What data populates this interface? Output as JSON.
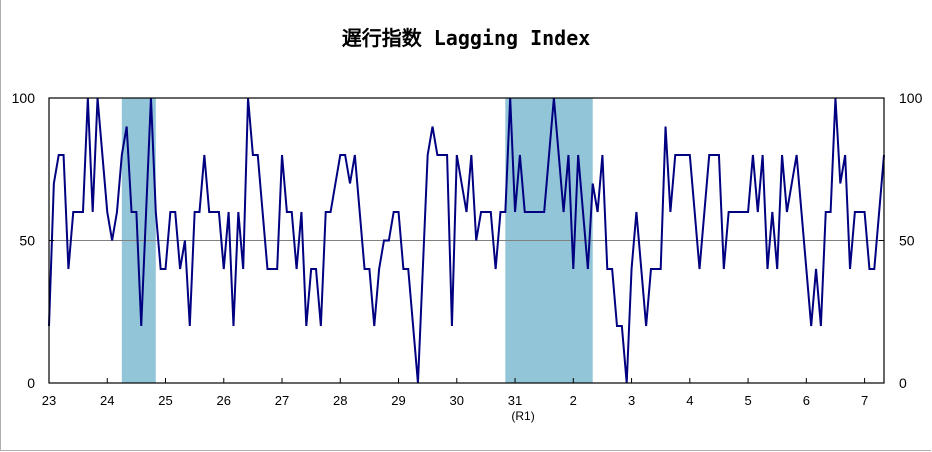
{
  "chart_data": {
    "type": "line",
    "title": "遅行指数 Lagging Index",
    "xlabel": "",
    "ylabel": "",
    "ylim": [
      0,
      100
    ],
    "y_ticks": [
      0,
      50,
      100
    ],
    "grid": "horizontal line at 50",
    "legend": "none",
    "line_color": "#000080",
    "shade_color": "#92C5D8",
    "x_tick_labels": [
      "23",
      "24",
      "25",
      "26",
      "27",
      "28",
      "29",
      "30",
      "31",
      "2",
      "3",
      "4",
      "5",
      "6",
      "7"
    ],
    "x_era_note": {
      "tick_index": 8,
      "text": "(R1)"
    },
    "x_start": "2011-01",
    "x_interval": "month",
    "recession_shading": [
      {
        "start": "2012-04",
        "end": "2012-11"
      },
      {
        "start": "2018-11",
        "end": "2020-05"
      }
    ],
    "series": [
      {
        "values": [
          20,
          70,
          80,
          80,
          40,
          60,
          60,
          60,
          100,
          60,
          100,
          80,
          60,
          50,
          60,
          80,
          90,
          60,
          60,
          20,
          60,
          100,
          60,
          40,
          40,
          60,
          60,
          40,
          50,
          20,
          60,
          60,
          80,
          60,
          60,
          60,
          40,
          60,
          20,
          60,
          40,
          100,
          80,
          80,
          60,
          40,
          40,
          40,
          80,
          60,
          60,
          40,
          60,
          20,
          40,
          40,
          20,
          60,
          60,
          70,
          80,
          80,
          70,
          80,
          60,
          40,
          40,
          20,
          40,
          50,
          50,
          60,
          60,
          40,
          40,
          20,
          0,
          40,
          80,
          90,
          80,
          80,
          80,
          20,
          80,
          70,
          60,
          80,
          50,
          60,
          60,
          60,
          40,
          60,
          60,
          100,
          60,
          80,
          60,
          60,
          60,
          60,
          60,
          80,
          100,
          80,
          60,
          80,
          40,
          80,
          60,
          40,
          70,
          60,
          80,
          40,
          40,
          20,
          20,
          0,
          40,
          60,
          40,
          20,
          40,
          40,
          40,
          90,
          60,
          80,
          80,
          80,
          80,
          60,
          40,
          60,
          80,
          80,
          80,
          40,
          60,
          60,
          60,
          60,
          60,
          80,
          60,
          80,
          40,
          60,
          40,
          80,
          60,
          70,
          80,
          60,
          40,
          20,
          40,
          20,
          60,
          60,
          100,
          70,
          80,
          40,
          60,
          60,
          60,
          40,
          40,
          60,
          80
        ]
      }
    ]
  }
}
